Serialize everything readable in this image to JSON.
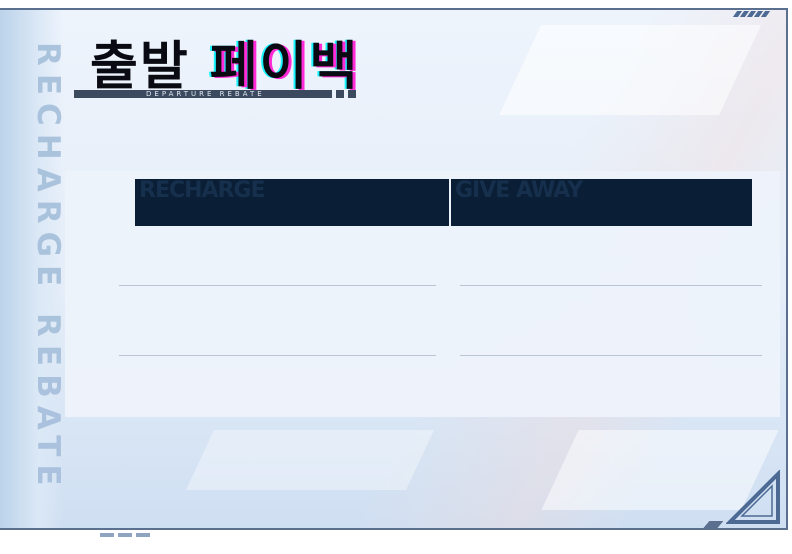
{
  "header": {
    "title_part1": "출발",
    "title_part2": "페이백",
    "subtitle": "DEPARTURE REBATE"
  },
  "side_label": "RECHARGE REBATE",
  "table": {
    "columns": [
      "RECHARGE",
      "GIVE AWAY"
    ]
  },
  "colors": {
    "header_bg": "#0a1f36",
    "accent_border": "#5b6f8e",
    "title_glitch_magenta": "#ff2bd6",
    "title_glitch_cyan": "#19f6ff"
  }
}
